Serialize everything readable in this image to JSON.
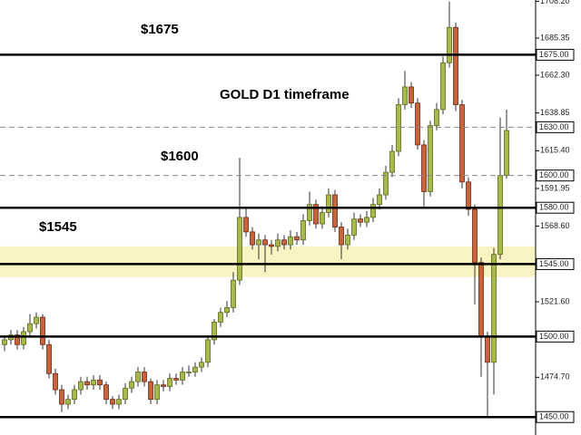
{
  "chart_data": {
    "type": "candlestick",
    "annotations": [
      "$1675",
      "GOLD D1 timeframe",
      "$1600",
      "$1545"
    ],
    "ylim": [
      1449,
      1709
    ],
    "yticks": [
      {
        "value": 1708.2,
        "label": "1708.20"
      },
      {
        "value": 1685.35,
        "label": "1685.35"
      },
      {
        "value": 1662.3,
        "label": "1662.30"
      },
      {
        "value": 1638.85,
        "label": "1638.85"
      },
      {
        "value": 1615.4,
        "label": "1615.40"
      },
      {
        "value": 1591.95,
        "label": "1591.95"
      },
      {
        "value": 1568.6,
        "label": "1568.60"
      },
      {
        "value": 1521.6,
        "label": "1521.60"
      },
      {
        "value": 1474.7,
        "label": "1474.70"
      }
    ],
    "levels": [
      {
        "value": 1675,
        "label": "1675.00",
        "style": "solid"
      },
      {
        "value": 1630,
        "label": "1630.00",
        "style": "dashed"
      },
      {
        "value": 1600,
        "label": "1600.00",
        "style": "dashed"
      },
      {
        "value": 1580,
        "label": "1580.00",
        "style": "solid"
      },
      {
        "value": 1545,
        "label": "1545.00",
        "style": "solid"
      },
      {
        "value": 1500,
        "label": "1500.00",
        "style": "solid"
      },
      {
        "value": 1450,
        "label": "1450.00",
        "style": "solid"
      }
    ],
    "zone": [
      1537,
      1556
    ],
    "zone_color": "#f8f3c0",
    "up_color": "#a8b84a",
    "down_color": "#c8643c",
    "open": [
      1495,
      1498,
      1501,
      1495,
      1503,
      1508,
      1512,
      1495,
      1477,
      1467,
      1458,
      1461,
      1467,
      1472,
      1470,
      1473,
      1470,
      1461,
      1458,
      1461,
      1468,
      1472,
      1478,
      1472,
      1461,
      1470,
      1469,
      1474,
      1473,
      1478,
      1478,
      1481,
      1484,
      1498,
      1509,
      1515,
      1518,
      1535,
      1574,
      1565,
      1557,
      1560,
      1557,
      1556,
      1560,
      1557,
      1562,
      1560,
      1572,
      1582,
      1570,
      1577,
      1588,
      1568,
      1557,
      1563,
      1573,
      1571,
      1574,
      1582,
      1588,
      1602,
      1615,
      1644,
      1655,
      1645,
      1619,
      1590,
      1631,
      1641,
      1670,
      1692,
      1644,
      1596,
      1579,
      1546,
      1500,
      1484,
      1551,
      1600
    ],
    "high": [
      1500,
      1504,
      1504,
      1506,
      1514,
      1515,
      1514,
      1498,
      1480,
      1470,
      1464,
      1470,
      1475,
      1475,
      1476,
      1476,
      1472,
      1463,
      1464,
      1471,
      1475,
      1481,
      1481,
      1474,
      1473,
      1473,
      1477,
      1477,
      1481,
      1482,
      1484,
      1487,
      1500,
      1511,
      1518,
      1522,
      1540,
      1611,
      1580,
      1568,
      1564,
      1563,
      1560,
      1564,
      1563,
      1566,
      1565,
      1576,
      1590,
      1585,
      1581,
      1592,
      1591,
      1571,
      1567,
      1577,
      1576,
      1578,
      1586,
      1592,
      1606,
      1619,
      1648,
      1665,
      1658,
      1648,
      1622,
      1634,
      1645,
      1674,
      1708,
      1695,
      1647,
      1599,
      1582,
      1549,
      1503,
      1555,
      1636,
      1641
    ],
    "low": [
      1491,
      1495,
      1492,
      1492,
      1500,
      1505,
      1492,
      1474,
      1464,
      1453,
      1455,
      1458,
      1464,
      1467,
      1467,
      1467,
      1458,
      1455,
      1455,
      1458,
      1465,
      1469,
      1469,
      1458,
      1458,
      1466,
      1466,
      1470,
      1470,
      1475,
      1475,
      1478,
      1481,
      1495,
      1506,
      1512,
      1515,
      1532,
      1562,
      1554,
      1548,
      1540,
      1551,
      1553,
      1554,
      1554,
      1557,
      1557,
      1569,
      1567,
      1567,
      1574,
      1565,
      1548,
      1554,
      1560,
      1568,
      1568,
      1571,
      1579,
      1585,
      1599,
      1612,
      1641,
      1642,
      1616,
      1580,
      1587,
      1628,
      1638,
      1667,
      1640,
      1592,
      1575,
      1520,
      1475,
      1450,
      1464,
      1548,
      1598
    ],
    "close": [
      1498,
      1501,
      1495,
      1503,
      1508,
      1512,
      1495,
      1477,
      1467,
      1458,
      1461,
      1467,
      1472,
      1470,
      1473,
      1470,
      1461,
      1458,
      1461,
      1468,
      1472,
      1478,
      1472,
      1461,
      1470,
      1469,
      1474,
      1473,
      1478,
      1478,
      1481,
      1484,
      1498,
      1509,
      1515,
      1518,
      1535,
      1574,
      1565,
      1557,
      1560,
      1557,
      1556,
      1560,
      1557,
      1562,
      1560,
      1572,
      1582,
      1570,
      1577,
      1588,
      1568,
      1557,
      1563,
      1573,
      1571,
      1574,
      1582,
      1588,
      1602,
      1615,
      1644,
      1655,
      1645,
      1619,
      1590,
      1631,
      1641,
      1670,
      1692,
      1644,
      1596,
      1579,
      1546,
      1500,
      1484,
      1551,
      1600,
      1628
    ]
  }
}
